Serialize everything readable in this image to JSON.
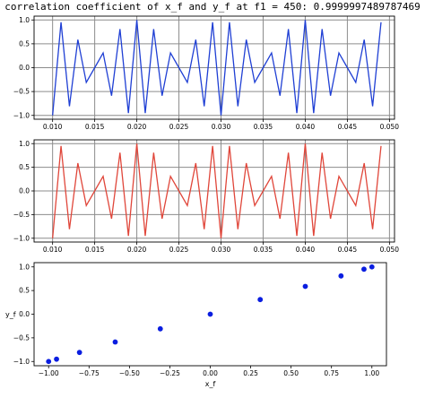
{
  "title": "correlation coefficient of x_f and y_f at f1 = 450: 0.9999997489787469",
  "chart_data": [
    {
      "type": "line",
      "color": "#1f3fd4",
      "x": [
        0.01,
        0.011,
        0.012,
        0.013,
        0.014,
        0.015,
        0.016,
        0.017,
        0.018,
        0.019,
        0.02,
        0.021,
        0.022,
        0.023,
        0.024,
        0.025,
        0.026,
        0.027,
        0.028,
        0.029,
        0.03,
        0.031,
        0.032,
        0.033,
        0.034,
        0.035,
        0.036,
        0.037,
        0.038,
        0.039,
        0.04,
        0.041,
        0.042,
        0.043,
        0.044,
        0.045,
        0.046,
        0.047,
        0.048,
        0.049
      ],
      "y": [
        -1.0,
        0.951,
        -0.809,
        0.588,
        -0.309,
        0.0,
        0.309,
        -0.588,
        0.809,
        -0.951,
        1.0,
        -0.951,
        0.809,
        -0.588,
        0.309,
        0.0,
        -0.309,
        0.588,
        -0.809,
        0.951,
        -1.0,
        0.951,
        -0.809,
        0.588,
        -0.309,
        0.0,
        0.309,
        -0.588,
        0.809,
        -0.951,
        1.0,
        -0.951,
        0.809,
        -0.588,
        0.309,
        0.0,
        -0.309,
        0.588,
        -0.809,
        0.951
      ],
      "xlim": [
        0.0078,
        0.0506
      ],
      "ylim": [
        -1.08,
        1.08
      ],
      "xticks": [
        "0.010",
        "0.015",
        "0.020",
        "0.025",
        "0.030",
        "0.035",
        "0.040",
        "0.045",
        "0.050"
      ],
      "yticks": [
        "1.0",
        "0.5",
        "0.0",
        "−0.5",
        "−1.0"
      ],
      "grid": true
    },
    {
      "type": "line",
      "color": "#e0463a",
      "x": [
        0.01,
        0.011,
        0.012,
        0.013,
        0.014,
        0.015,
        0.016,
        0.017,
        0.018,
        0.019,
        0.02,
        0.021,
        0.022,
        0.023,
        0.024,
        0.025,
        0.026,
        0.027,
        0.028,
        0.029,
        0.03,
        0.031,
        0.032,
        0.033,
        0.034,
        0.035,
        0.036,
        0.037,
        0.038,
        0.039,
        0.04,
        0.041,
        0.042,
        0.043,
        0.044,
        0.045,
        0.046,
        0.047,
        0.048,
        0.049
      ],
      "y": [
        -1.0,
        0.951,
        -0.809,
        0.588,
        -0.309,
        0.0,
        0.309,
        -0.588,
        0.809,
        -0.951,
        1.0,
        -0.951,
        0.809,
        -0.588,
        0.309,
        0.0,
        -0.309,
        0.588,
        -0.809,
        0.951,
        -1.0,
        0.951,
        -0.809,
        0.588,
        -0.309,
        0.0,
        0.309,
        -0.588,
        0.809,
        -0.951,
        1.0,
        -0.951,
        0.809,
        -0.588,
        0.309,
        0.0,
        -0.309,
        0.588,
        -0.809,
        0.951
      ],
      "xlim": [
        0.0078,
        0.0506
      ],
      "ylim": [
        -1.08,
        1.08
      ],
      "xticks": [
        "0.010",
        "0.015",
        "0.020",
        "0.025",
        "0.030",
        "0.035",
        "0.040",
        "0.045",
        "0.050"
      ],
      "yticks": [
        "1.0",
        "0.5",
        "0.0",
        "−0.5",
        "−1.0"
      ],
      "grid": true
    },
    {
      "type": "scatter",
      "color": "#0a1ee0",
      "x": [
        -1.0,
        -0.951,
        -0.809,
        -0.588,
        -0.309,
        0.0,
        0.309,
        0.588,
        0.809,
        0.951,
        1.0
      ],
      "y": [
        -1.0,
        -0.951,
        -0.809,
        -0.588,
        -0.309,
        0.0,
        0.309,
        0.588,
        0.809,
        0.951,
        1.0
      ],
      "xlim": [
        -1.09,
        1.09
      ],
      "ylim": [
        -1.09,
        1.09
      ],
      "xticks": [
        "−1.00",
        "−0.75",
        "−0.50",
        "−0.25",
        "0.00",
        "0.25",
        "0.50",
        "0.75",
        "1.00"
      ],
      "yticks": [
        "1.0",
        "0.5",
        "0.0",
        "−0.5",
        "−1.0"
      ],
      "xlabel": "x_f",
      "ylabel": "y_f",
      "grid": false
    }
  ]
}
